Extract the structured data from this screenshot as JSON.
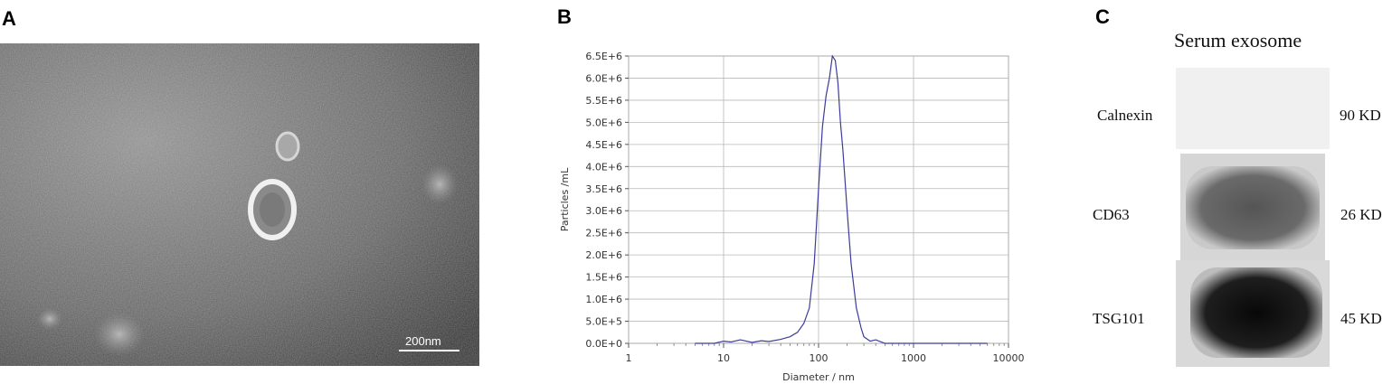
{
  "panels": {
    "a": {
      "letter": "A",
      "scale_label": "200nm"
    },
    "b": {
      "letter": "B"
    },
    "c": {
      "letter": "C",
      "title": "Serum exosome"
    }
  },
  "chart_data": {
    "type": "line",
    "xlabel": "Diameter / nm",
    "ylabel": "Particles /mL",
    "xscale": "log",
    "xlim": [
      1,
      10000
    ],
    "ylim": [
      0,
      6500000
    ],
    "x_ticks": [
      "1",
      "10",
      "100",
      "1000",
      "10000"
    ],
    "y_ticks": [
      "0.0E+0",
      "5.0E+5",
      "1.0E+6",
      "1.5E+6",
      "2.0E+6",
      "2.5E+6",
      "3.0E+6",
      "3.5E+6",
      "4.0E+6",
      "4.5E+6",
      "5.0E+6",
      "5.5E+6",
      "6.0E+6",
      "6.5E+6"
    ],
    "grid": true,
    "line_color": "#3b3b9a",
    "series": [
      {
        "x": [
          5,
          8,
          10,
          12,
          15,
          20,
          25,
          30,
          40,
          50,
          60,
          70,
          80,
          90,
          100,
          110,
          120,
          130,
          140,
          150,
          160,
          170,
          180,
          200,
          220,
          250,
          280,
          300,
          350,
          400,
          500,
          1000,
          6000
        ],
        "y": [
          0,
          0,
          50000,
          30000,
          80000,
          20000,
          60000,
          40000,
          90000,
          150000,
          250000,
          450000,
          800000,
          1800000,
          3500000,
          4900000,
          5600000,
          6000000,
          6500000,
          6400000,
          5900000,
          5000000,
          4400000,
          3000000,
          1800000,
          800000,
          350000,
          150000,
          50000,
          80000,
          0,
          0,
          0
        ]
      }
    ]
  },
  "western_blot": {
    "rows": [
      {
        "protein": "Calnexin",
        "size": "90 KD"
      },
      {
        "protein": "CD63",
        "size": "26 KD"
      },
      {
        "protein": "TSG101",
        "size": "45 KD"
      }
    ]
  }
}
